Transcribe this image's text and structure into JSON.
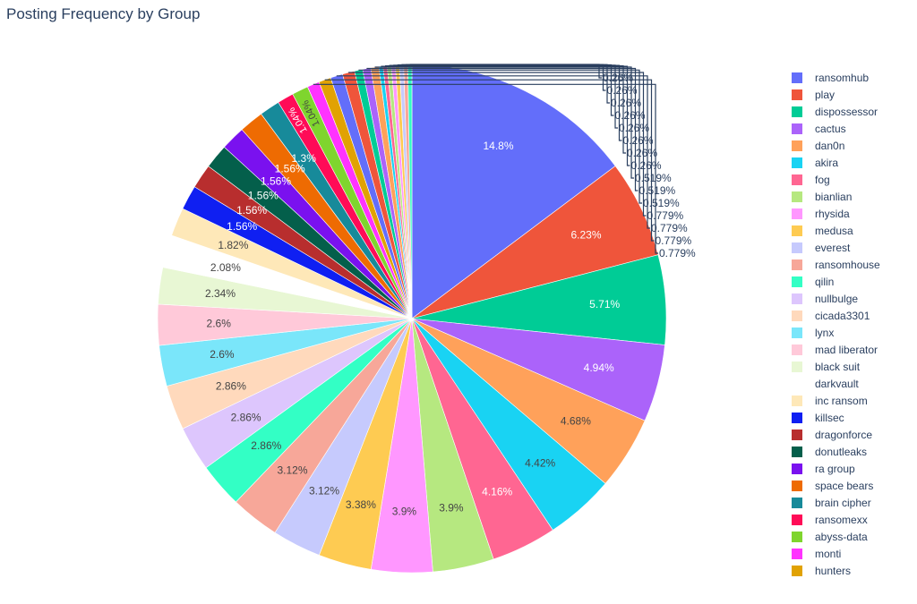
{
  "chart_data": {
    "type": "pie",
    "title": "Posting Frequency by Group",
    "slices": [
      {
        "label": "ransomhub",
        "value": 14.8,
        "text": "14.8%",
        "color": "#636efa"
      },
      {
        "label": "play",
        "value": 6.23,
        "text": "6.23%",
        "color": "#ef553b"
      },
      {
        "label": "dispossessor",
        "value": 5.71,
        "text": "5.71%",
        "color": "#00cc96"
      },
      {
        "label": "cactus",
        "value": 4.94,
        "text": "4.94%",
        "color": "#ab63fa"
      },
      {
        "label": "dan0n",
        "value": 4.68,
        "text": "4.68%",
        "color": "#ffa15a"
      },
      {
        "label": "akira",
        "value": 4.42,
        "text": "4.42%",
        "color": "#19d3f3"
      },
      {
        "label": "fog",
        "value": 4.16,
        "text": "4.16%",
        "color": "#ff6692"
      },
      {
        "label": "bianlian",
        "value": 3.9,
        "text": "3.9%",
        "color": "#b6e880"
      },
      {
        "label": "rhysida",
        "value": 3.9,
        "text": "3.9%",
        "color": "#ff97ff"
      },
      {
        "label": "medusa",
        "value": 3.38,
        "text": "3.38%",
        "color": "#fecb52"
      },
      {
        "label": "everest",
        "value": 3.12,
        "text": "3.12%",
        "color": "#c6cafd"
      },
      {
        "label": "ransomhouse",
        "value": 3.12,
        "text": "3.12%",
        "color": "#f7a799"
      },
      {
        "label": "qilin",
        "value": 2.86,
        "text": "2.86%",
        "color": "#33ffc5"
      },
      {
        "label": "nullbulge",
        "value": 2.86,
        "text": "2.86%",
        "color": "#ddc6fd"
      },
      {
        "label": "cicada3301",
        "value": 2.86,
        "text": "2.86%",
        "color": "#ffd9bc"
      },
      {
        "label": "lynx",
        "value": 2.6,
        "text": "2.6%",
        "color": "#7ae6fa"
      },
      {
        "label": "mad liberator",
        "value": 2.6,
        "text": "2.6%",
        "color": "#ffc9d9"
      },
      {
        "label": "black suit",
        "value": 2.34,
        "text": "2.34%",
        "color": "#e8f7d4"
      },
      {
        "label": "darkvault",
        "value": 2.08,
        "text": "2.08%",
        "color": "#ffffff"
      },
      {
        "label": "inc ransom",
        "value": 1.82,
        "text": "1.82%",
        "color": "#fee8b8"
      },
      {
        "label": "killsec",
        "value": 1.56,
        "text": "1.56%",
        "color": "#0f1ff2"
      },
      {
        "label": "dragonforce",
        "value": 1.56,
        "text": "1.56%",
        "color": "#b82e2e"
      },
      {
        "label": "donutleaks",
        "value": 1.56,
        "text": "1.56%",
        "color": "#045f4b"
      },
      {
        "label": "ra group",
        "value": 1.56,
        "text": "1.56%",
        "color": "#7a11ef"
      },
      {
        "label": "space bears",
        "value": 1.56,
        "text": "1.56%",
        "color": "#ee6b02"
      },
      {
        "label": "brain cipher",
        "value": 1.3,
        "text": "1.3%",
        "color": "#178a9a"
      },
      {
        "label": "ransomexx",
        "value": 1.04,
        "text": "1.04%",
        "color": "#ff0b57"
      },
      {
        "label": "abyss-data",
        "value": 1.04,
        "text": "1.04%",
        "color": "#7fd52e"
      },
      {
        "label": "monti",
        "value": 0.779,
        "text": "0.779%",
        "color": "#ff33ff"
      },
      {
        "label": "hunters",
        "value": 0.779,
        "text": "0.779%",
        "color": "#e1a203"
      },
      {
        "value": 0.779,
        "text": "0.779%",
        "color": "#636efa"
      },
      {
        "value": 0.779,
        "text": "0.779%",
        "color": "#ef553b"
      },
      {
        "value": 0.519,
        "text": "0.519%",
        "color": "#00cc96"
      },
      {
        "value": 0.519,
        "text": "0.519%",
        "color": "#ab63fa"
      },
      {
        "value": 0.519,
        "text": "0.519%",
        "color": "#ffa15a"
      },
      {
        "value": 0.26,
        "text": "0.26%",
        "color": "#19d3f3"
      },
      {
        "value": 0.26,
        "text": "0.26%",
        "color": "#ff6692"
      },
      {
        "value": 0.26,
        "text": "0.26%",
        "color": "#b6e880"
      },
      {
        "value": 0.26,
        "text": "0.26%",
        "color": "#ff97ff"
      },
      {
        "value": 0.26,
        "text": "0.26%",
        "color": "#fecb52"
      },
      {
        "value": 0.26,
        "text": "0.26%",
        "color": "#c6cafd"
      },
      {
        "value": 0.26,
        "text": "0.26%",
        "color": "#f7a799"
      },
      {
        "value": 0.26,
        "text": "0.26%",
        "color": "#33ffc5"
      }
    ],
    "legend_placement": "right"
  }
}
